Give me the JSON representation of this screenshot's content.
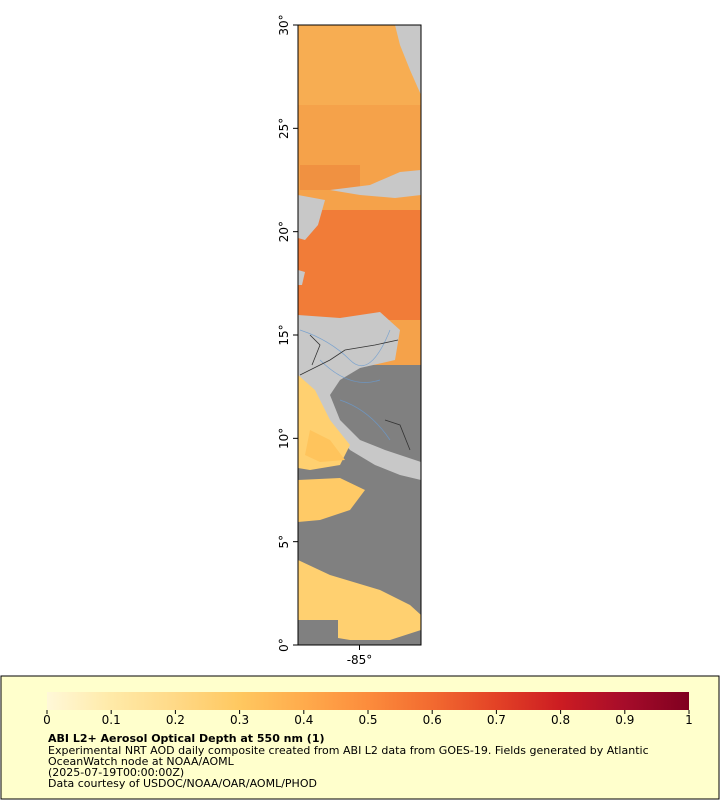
{
  "map": {
    "ylim": [
      0,
      30
    ],
    "yticks": [
      {
        "value": 0,
        "label": "0°"
      },
      {
        "value": 5,
        "label": "5°"
      },
      {
        "value": 10,
        "label": "10°"
      },
      {
        "value": 15,
        "label": "15°"
      },
      {
        "value": 20,
        "label": "20°"
      },
      {
        "value": 25,
        "label": "25°"
      },
      {
        "value": 30,
        "label": "30°"
      }
    ],
    "xlim": [
      -88,
      -82
    ],
    "xticks": [
      {
        "value": -85,
        "label": "-85°"
      }
    ]
  },
  "colorbar": {
    "range": [
      0,
      1
    ],
    "ticks": [
      0,
      0.1,
      0.2,
      0.3,
      0.4,
      0.5,
      0.6,
      0.7,
      0.8,
      0.9,
      1
    ],
    "colors": [
      "#fff8d8",
      "#ffeaa8",
      "#ffd987",
      "#ffc860",
      "#ffab4c",
      "#fc8c3c",
      "#f26a30",
      "#e34226",
      "#cc1c22",
      "#a60c2a",
      "#800020"
    ]
  },
  "legend": {
    "title": "ABI L2+ Aerosol Optical Depth at 550 nm (1)",
    "lines": [
      "Experimental NRT AOD daily composite created from ABI L2 data from GOES-19. Fields generated by Atlantic",
      "OceanWatch node at NOAA/AOML",
      "(2025-07-19T00:00:00Z)",
      "Data courtesy of USDOC/NOAA/OAR/AOML/PHOD"
    ]
  }
}
